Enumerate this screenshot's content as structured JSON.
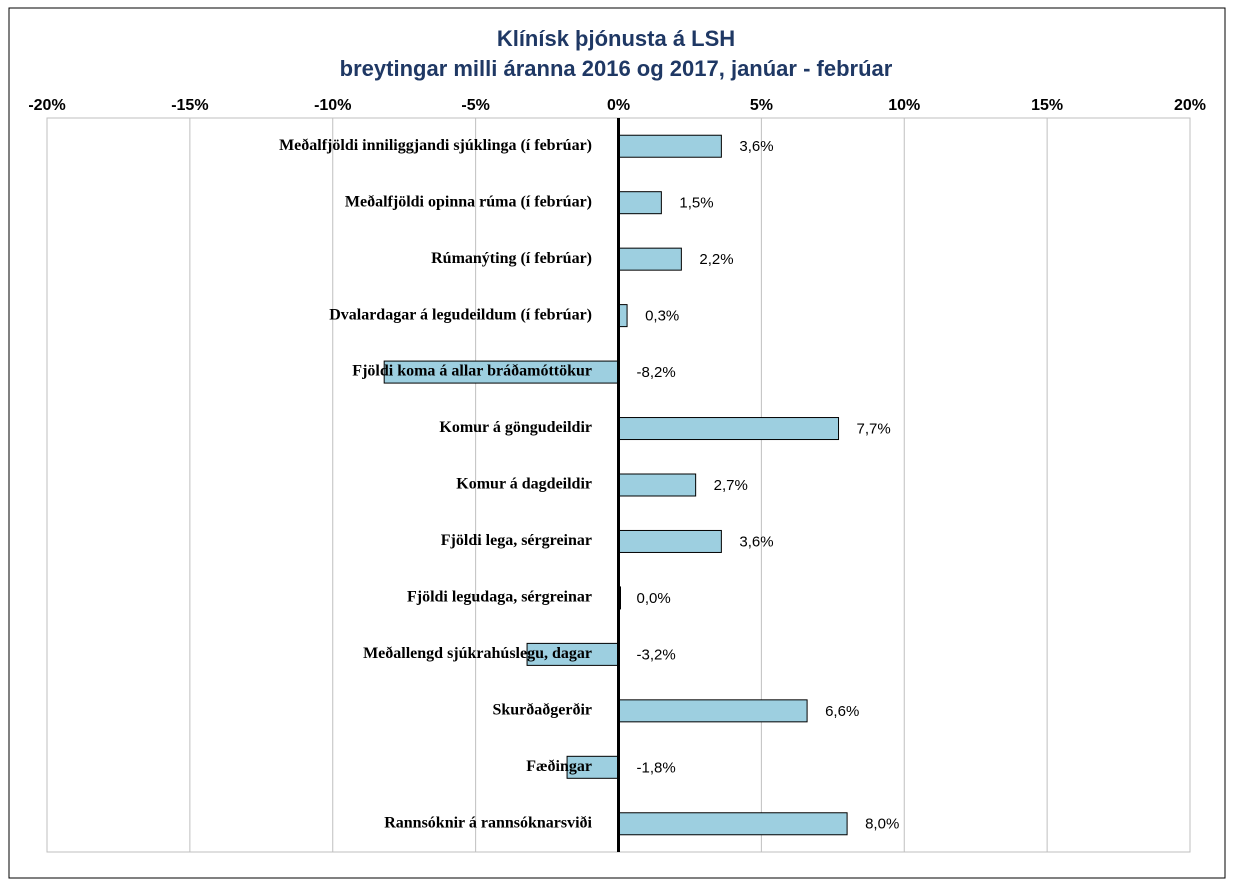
{
  "chart_data": {
    "type": "barh",
    "title": "Klínísk þjónusta á LSH",
    "subtitle": "breytingar milli áranna 2016 og 2017,  janúar - febrúar",
    "categories": [
      "Meðalfjöldi inniliggjandi sjúklinga (í febrúar)",
      "Meðalfjöldi opinna rúma (í febrúar)",
      "Rúmanýting (í febrúar)",
      "Dvalardagar á legudeildum (í febrúar)",
      "Fjöldi koma á allar bráðamóttökur",
      "Komur á göngudeildir",
      "Komur á dagdeildir",
      "Fjöldi lega, sérgreinar",
      "Fjöldi legudaga, sérgreinar",
      "Meðallengd sjúkrahúslegu, dagar",
      "Skurðaðgerðir",
      "Fæðingar",
      "Rannsóknir á rannsóknarsviði"
    ],
    "values": [
      3.6,
      1.5,
      2.2,
      0.3,
      -8.2,
      7.7,
      2.7,
      3.6,
      0.0,
      -3.2,
      6.6,
      -1.8,
      8.0
    ],
    "value_labels": [
      "3,6%",
      "1,5%",
      "2,2%",
      "0,3%",
      "-8,2%",
      "7,7%",
      "2,7%",
      "3,6%",
      "0,0%",
      "-3,2%",
      "6,6%",
      "-1,8%",
      "8,0%"
    ],
    "color": "#9dcfe0",
    "xlim": [
      -20,
      20
    ],
    "xticks": [
      {
        "value": -20,
        "label": "-20%"
      },
      {
        "value": -15,
        "label": "-15%"
      },
      {
        "value": -10,
        "label": "-10%"
      },
      {
        "value": -5,
        "label": "-5%"
      },
      {
        "value": 0,
        "label": "0%"
      },
      {
        "value": 5,
        "label": "5%"
      },
      {
        "value": 10,
        "label": "10%"
      },
      {
        "value": 15,
        "label": "15%"
      },
      {
        "value": 20,
        "label": "20%"
      }
    ],
    "grid": true
  }
}
